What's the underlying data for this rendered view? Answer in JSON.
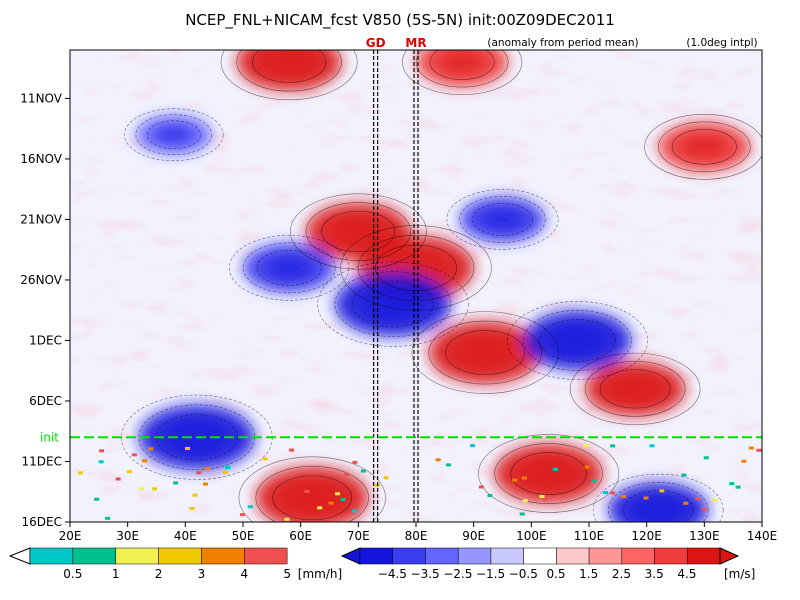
{
  "chart_data": {
    "type": "heatmap",
    "title": "NCEP_FNL+NICAM_fcst V850 (5S-5N) init:00Z09DEC2011",
    "note_left": "(anomaly from period mean)",
    "note_right": "(1.0deg intpl)",
    "xlabel": "",
    "ylabel": "",
    "x_ticks": [
      "20E",
      "30E",
      "40E",
      "50E",
      "60E",
      "70E",
      "80E",
      "90E",
      "100E",
      "110E",
      "120E",
      "130E",
      "140E"
    ],
    "x_range": [
      20,
      140
    ],
    "y_ticks": [
      "11NOV",
      "16NOV",
      "21NOV",
      "26NOV",
      "1DEC",
      "6DEC",
      "11DEC",
      "16DEC"
    ],
    "y_range_days": [
      "07NOV2011",
      "16DEC2011"
    ],
    "markers": [
      {
        "label": "GD",
        "lon": 73.0,
        "color": "#e00000"
      },
      {
        "label": "MR",
        "lon": 80.0,
        "color": "#e00000"
      }
    ],
    "init_line": {
      "label": "init",
      "date": "09DEC2011",
      "color": "#00e000"
    },
    "anomaly_features": [
      {
        "sign": "pos",
        "lon": 58,
        "date": "08NOV",
        "amp": 3.8
      },
      {
        "sign": "pos",
        "lon": 88,
        "date": "08NOV",
        "amp": 3.0
      },
      {
        "sign": "neg",
        "lon": 38,
        "date": "14NOV",
        "amp": -2.0
      },
      {
        "sign": "pos",
        "lon": 130,
        "date": "15NOV",
        "amp": 3.0
      },
      {
        "sign": "neg",
        "lon": 95,
        "date": "21NOV",
        "amp": -2.6
      },
      {
        "sign": "pos",
        "lon": 70,
        "date": "22NOV",
        "amp": 3.8
      },
      {
        "sign": "pos",
        "lon": 80,
        "date": "25NOV",
        "amp": 4.5
      },
      {
        "sign": "neg",
        "lon": 76,
        "date": "28NOV",
        "amp": -4.5
      },
      {
        "sign": "neg",
        "lon": 58,
        "date": "25NOV",
        "amp": -3.0
      },
      {
        "sign": "pos",
        "lon": 92,
        "date": "02DEC",
        "amp": 4.3
      },
      {
        "sign": "neg",
        "lon": 108,
        "date": "01DEC",
        "amp": -4.0
      },
      {
        "sign": "pos",
        "lon": 118,
        "date": "05DEC",
        "amp": 3.5
      },
      {
        "sign": "neg",
        "lon": 42,
        "date": "09DEC",
        "amp": -4.5
      },
      {
        "sign": "pos",
        "lon": 62,
        "date": "14DEC",
        "amp": 4.3
      },
      {
        "sign": "pos",
        "lon": 103,
        "date": "12DEC",
        "amp": 4.0
      },
      {
        "sign": "neg",
        "lon": 122,
        "date": "15DEC",
        "amp": -3.5
      }
    ],
    "precip_colorbar": {
      "labels": [
        "0.5",
        "1",
        "2",
        "3",
        "4",
        "5"
      ],
      "unit": "[mm/h]",
      "colors": [
        "#00c8c8",
        "#00c090",
        "#f0f050",
        "#f0c800",
        "#f08000",
        "#f05050"
      ]
    },
    "wind_colorbar": {
      "labels": [
        "−4.5",
        "−3.5",
        "−2.5",
        "−1.5",
        "−0.5",
        "0.5",
        "1.5",
        "2.5",
        "3.5",
        "4.5"
      ],
      "unit": "[m/s]",
      "colors": [
        "#1414dc",
        "#3c3cf0",
        "#6464ff",
        "#9696ff",
        "#c8c8ff",
        "#ffffff",
        "#ffc8c8",
        "#ff9696",
        "#ff6464",
        "#f03c3c",
        "#dc1414"
      ]
    }
  }
}
